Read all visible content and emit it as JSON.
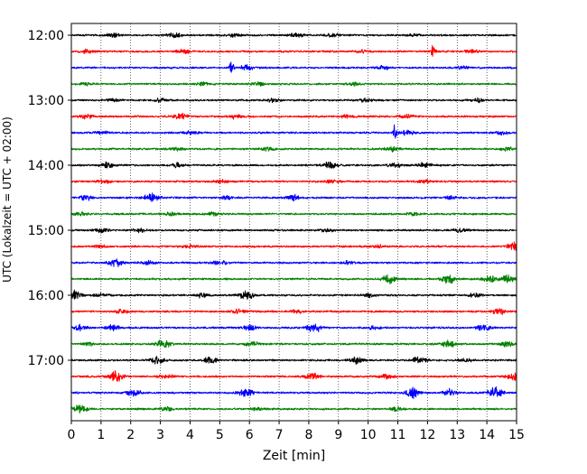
{
  "chart_data": {
    "type": "line",
    "title": "",
    "xlabel": "Zeit  [min]",
    "ylabel": "UTC (Lokalzeit = UTC + 02:00)",
    "xlim": [
      0,
      15
    ],
    "xticks": [
      0,
      1,
      2,
      3,
      4,
      5,
      6,
      7,
      8,
      9,
      10,
      11,
      12,
      13,
      14,
      15
    ],
    "x_grid": "dotted vertical at each minute",
    "y_tick_labels": [
      "12:00",
      "13:00",
      "14:00",
      "15:00",
      "16:00",
      "17:00"
    ],
    "trace_interval_minutes": 15,
    "trace_color_cycle": [
      "#000000",
      "#ff0000",
      "#0000ff",
      "#008000"
    ],
    "traces": [
      {
        "start": "12:00",
        "color": "#000000",
        "events": [
          [
            1.4,
            0.22
          ],
          [
            3.5,
            0.25
          ],
          [
            5.5,
            0.2
          ],
          [
            7.6,
            0.22
          ],
          [
            8.8,
            0.2
          ],
          [
            11.5,
            0.18
          ]
        ]
      },
      {
        "start": "12:15",
        "color": "#ff0000",
        "events": [
          [
            0.5,
            0.2
          ],
          [
            3.8,
            0.22
          ],
          [
            9.8,
            0.2
          ],
          [
            12.2,
            0.85
          ],
          [
            13.5,
            0.2
          ]
        ]
      },
      {
        "start": "12:30",
        "color": "#0000ff",
        "events": [
          [
            5.4,
            0.9
          ],
          [
            5.9,
            0.35
          ],
          [
            10.5,
            0.2
          ],
          [
            13.2,
            0.2
          ]
        ]
      },
      {
        "start": "12:45",
        "color": "#008000",
        "events": [
          [
            0.5,
            0.18
          ],
          [
            4.4,
            0.18
          ],
          [
            6.3,
            0.22
          ],
          [
            9.5,
            0.18
          ]
        ]
      },
      {
        "start": "13:00",
        "color": "#000000",
        "events": [
          [
            1.4,
            0.2
          ],
          [
            3.0,
            0.2
          ],
          [
            6.8,
            0.2
          ],
          [
            9.9,
            0.2
          ],
          [
            13.7,
            0.2
          ]
        ]
      },
      {
        "start": "13:15",
        "color": "#ff0000",
        "events": [
          [
            0.5,
            0.25
          ],
          [
            3.7,
            0.35
          ],
          [
            5.5,
            0.25
          ],
          [
            9.3,
            0.2
          ],
          [
            11.3,
            0.22
          ]
        ]
      },
      {
        "start": "13:30",
        "color": "#0000ff",
        "events": [
          [
            1.0,
            0.2
          ],
          [
            4.0,
            0.2
          ],
          [
            10.9,
            0.95
          ],
          [
            11.3,
            0.3
          ],
          [
            14.5,
            0.2
          ]
        ]
      },
      {
        "start": "13:45",
        "color": "#008000",
        "events": [
          [
            3.6,
            0.2
          ],
          [
            6.6,
            0.22
          ],
          [
            10.8,
            0.3
          ],
          [
            14.7,
            0.2
          ]
        ]
      },
      {
        "start": "14:00",
        "color": "#000000",
        "events": [
          [
            1.2,
            0.35
          ],
          [
            3.6,
            0.25
          ],
          [
            8.7,
            0.4
          ],
          [
            10.9,
            0.3
          ],
          [
            11.9,
            0.25
          ]
        ]
      },
      {
        "start": "14:15",
        "color": "#ff0000",
        "events": [
          [
            1.1,
            0.2
          ],
          [
            5.0,
            0.2
          ],
          [
            8.8,
            0.2
          ],
          [
            11.9,
            0.2
          ]
        ]
      },
      {
        "start": "14:30",
        "color": "#0000ff",
        "events": [
          [
            0.5,
            0.28
          ],
          [
            2.7,
            0.5
          ],
          [
            5.3,
            0.2
          ],
          [
            7.5,
            0.35
          ],
          [
            12.8,
            0.2
          ]
        ]
      },
      {
        "start": "14:45",
        "color": "#008000",
        "events": [
          [
            0.3,
            0.18
          ],
          [
            3.3,
            0.2
          ],
          [
            4.8,
            0.18
          ],
          [
            11.5,
            0.18
          ]
        ]
      },
      {
        "start": "15:00",
        "color": "#000000",
        "events": [
          [
            1.0,
            0.22
          ],
          [
            2.3,
            0.22
          ],
          [
            8.6,
            0.2
          ],
          [
            13.1,
            0.2
          ]
        ]
      },
      {
        "start": "15:15",
        "color": "#ff0000",
        "events": [
          [
            1.0,
            0.18
          ],
          [
            4.0,
            0.2
          ],
          [
            10.3,
            0.18
          ],
          [
            14.9,
            0.45
          ]
        ]
      },
      {
        "start": "15:30",
        "color": "#0000ff",
        "events": [
          [
            1.5,
            0.5
          ],
          [
            2.6,
            0.25
          ],
          [
            5.0,
            0.3
          ],
          [
            9.3,
            0.2
          ]
        ]
      },
      {
        "start": "15:45",
        "color": "#008000",
        "events": [
          [
            10.7,
            0.55
          ],
          [
            12.7,
            0.5
          ],
          [
            14.1,
            0.4
          ],
          [
            14.7,
            0.45
          ]
        ]
      },
      {
        "start": "16:00",
        "color": "#000000",
        "events": [
          [
            0.1,
            0.6
          ],
          [
            1.0,
            0.2
          ],
          [
            4.4,
            0.25
          ],
          [
            5.9,
            0.5
          ],
          [
            10.0,
            0.2
          ],
          [
            13.6,
            0.2
          ]
        ]
      },
      {
        "start": "16:15",
        "color": "#ff0000",
        "events": [
          [
            1.7,
            0.22
          ],
          [
            5.6,
            0.25
          ],
          [
            7.6,
            0.22
          ],
          [
            14.4,
            0.4
          ]
        ]
      },
      {
        "start": "16:30",
        "color": "#0000ff",
        "events": [
          [
            0.3,
            0.3
          ],
          [
            1.4,
            0.35
          ],
          [
            6.0,
            0.3
          ],
          [
            8.2,
            0.6
          ],
          [
            10.2,
            0.2
          ],
          [
            13.9,
            0.35
          ]
        ]
      },
      {
        "start": "16:45",
        "color": "#008000",
        "events": [
          [
            0.6,
            0.2
          ],
          [
            3.1,
            0.55
          ],
          [
            6.1,
            0.3
          ],
          [
            12.7,
            0.45
          ],
          [
            14.7,
            0.3
          ]
        ]
      },
      {
        "start": "17:00",
        "color": "#000000",
        "events": [
          [
            2.9,
            0.45
          ],
          [
            4.7,
            0.4
          ],
          [
            9.6,
            0.4
          ],
          [
            11.7,
            0.38
          ],
          [
            13.3,
            0.2
          ]
        ]
      },
      {
        "start": "17:15",
        "color": "#ff0000",
        "events": [
          [
            1.5,
            0.65
          ],
          [
            3.2,
            0.25
          ],
          [
            8.1,
            0.5
          ],
          [
            10.6,
            0.25
          ],
          [
            14.9,
            0.4
          ]
        ]
      },
      {
        "start": "17:30",
        "color": "#0000ff",
        "events": [
          [
            2.1,
            0.45
          ],
          [
            5.9,
            0.55
          ],
          [
            11.5,
            0.6
          ],
          [
            12.8,
            0.45
          ],
          [
            14.3,
            0.65
          ]
        ]
      },
      {
        "start": "17:45",
        "color": "#008000",
        "events": [
          [
            0.3,
            0.45
          ],
          [
            3.2,
            0.22
          ],
          [
            6.2,
            0.2
          ],
          [
            11.0,
            0.25
          ]
        ]
      }
    ]
  }
}
